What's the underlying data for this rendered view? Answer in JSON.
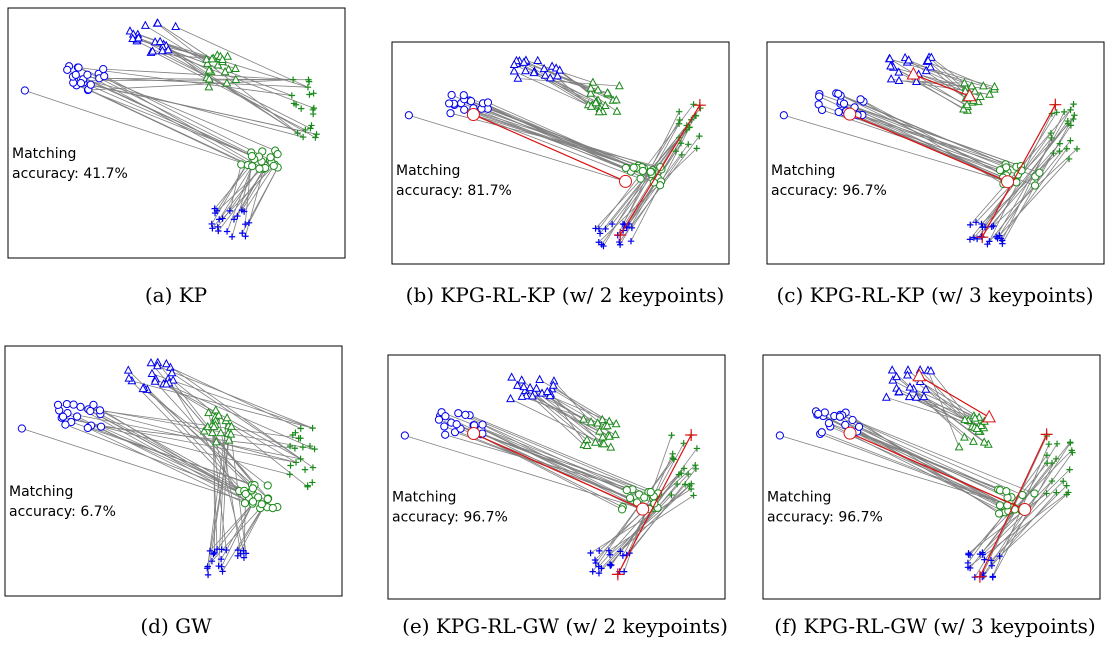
{
  "colors": {
    "blue": "#0000ee",
    "green": "#1a8a1a",
    "grey_line": "#808080",
    "red": "#dd1111",
    "frame": "#000000"
  },
  "markers": {
    "circle": "circle-marker",
    "triangle": "triangle-marker",
    "plus": "plus-marker"
  },
  "chart_data": [
    {
      "type": "scatter",
      "id": "a",
      "text_line1": "Matching",
      "text_line2": "accuracy: 41.7%",
      "caption": "(a)  KP",
      "keypoints": 0
    },
    {
      "type": "scatter",
      "id": "b",
      "text_line1": "Matching",
      "text_line2": "accuracy: 81.7%",
      "caption": "(b)  KPG-RL-KP (w/ 2 keypoints)",
      "keypoints": 2
    },
    {
      "type": "scatter",
      "id": "c",
      "text_line1": "Matching",
      "text_line2": "accuracy: 96.7%",
      "caption": "(c)  KPG-RL-KP (w/ 3 keypoints)",
      "keypoints": 3
    },
    {
      "type": "scatter",
      "id": "d",
      "text_line1": "Matching",
      "text_line2": "accuracy: 6.7%",
      "caption": "(d)  GW",
      "keypoints": 0
    },
    {
      "type": "scatter",
      "id": "e",
      "text_line1": "Matching",
      "text_line2": "accuracy: 96.7%",
      "caption": "(e)  KPG-RL-GW (w/ 2 keypoints)",
      "keypoints": 2
    },
    {
      "type": "scatter",
      "id": "f",
      "text_line1": "Matching",
      "text_line2": "accuracy: 96.7%",
      "caption": "(f)  KPG-RL-GW (w/ 3 keypoints)",
      "keypoints": 3
    }
  ]
}
